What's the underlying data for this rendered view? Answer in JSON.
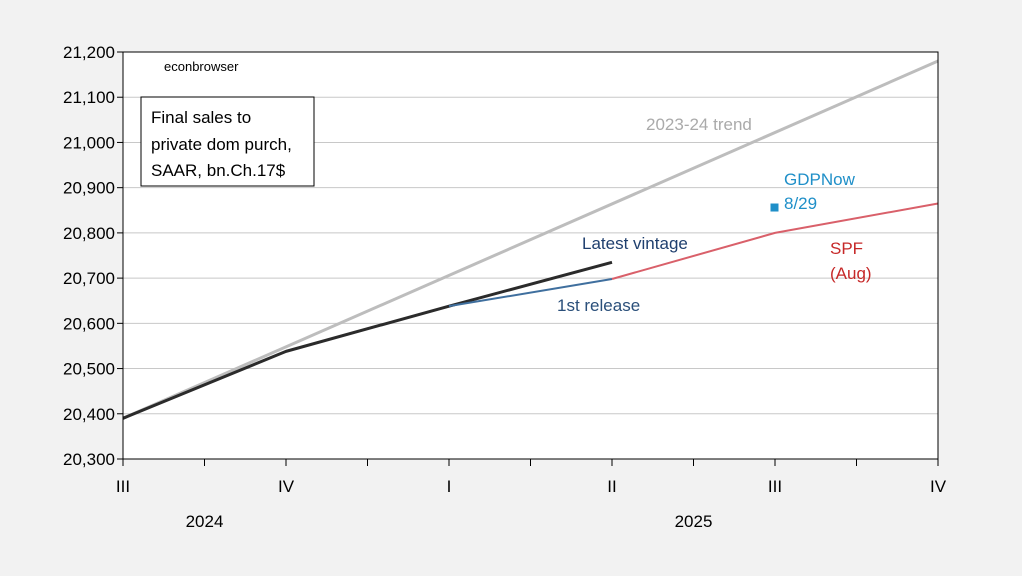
{
  "chart_data": {
    "type": "line",
    "watermark": "econbrowser",
    "info_box": [
      "Final sales to",
      "private dom purch,",
      "SAAR, bn.Ch.17$"
    ],
    "x_categories": [
      "2024Q3",
      "2024Q4",
      "2025Q1",
      "2025Q2",
      "2025Q3",
      "2025Q4"
    ],
    "x_tick_labels": [
      "III",
      "IV",
      "I",
      "II",
      "III",
      "IV"
    ],
    "year_labels": [
      {
        "text": "2024",
        "between": [
          "2024Q3",
          "2024Q4"
        ]
      },
      {
        "text": "2025",
        "between": [
          "2025Q1",
          "2025Q4"
        ]
      }
    ],
    "ylim": [
      20300,
      21200
    ],
    "y_ticks": [
      20300,
      20400,
      20500,
      20600,
      20700,
      20800,
      20900,
      21000,
      21100,
      21200
    ],
    "y_tick_labels": [
      "20,300",
      "20,400",
      "20,500",
      "20,600",
      "20,700",
      "20,800",
      "20,900",
      "21,000",
      "21,100",
      "21,200"
    ],
    "grid": true,
    "series": [
      {
        "id": "trend",
        "name": "2023-24 trend",
        "color": "#bdbdbd",
        "x": [
          "2024Q3",
          "2025Q4"
        ],
        "y": [
          20390,
          21180
        ]
      },
      {
        "id": "latest",
        "name": "Latest vintage",
        "color": "#2b2b2b",
        "x": [
          "2024Q3",
          "2024Q4",
          "2025Q1",
          "2025Q2"
        ],
        "y": [
          20390,
          20538,
          20638,
          20735
        ]
      },
      {
        "id": "first",
        "name": "1st release",
        "color": "#3f6f9e",
        "x": [
          "2025Q1",
          "2025Q2"
        ],
        "y": [
          20638,
          20698
        ]
      },
      {
        "id": "spf",
        "name": "SPF",
        "name2": "(Aug)",
        "color": "#d9606a",
        "x": [
          "2025Q2",
          "2025Q3",
          "2025Q4"
        ],
        "y": [
          20698,
          20800,
          20865
        ]
      }
    ],
    "points": [
      {
        "id": "gdpnow",
        "name": "GDPNow",
        "date_label": "8/29",
        "color": "#1f8fc8",
        "x": "2025Q3",
        "y": 20855
      }
    ],
    "label_colors": {
      "trend": "#aaaaaa",
      "latest": "#1f3f6e",
      "first": "#2a4f7a",
      "spf": "#c62828",
      "gdpnow": "#1f8fc8"
    }
  }
}
